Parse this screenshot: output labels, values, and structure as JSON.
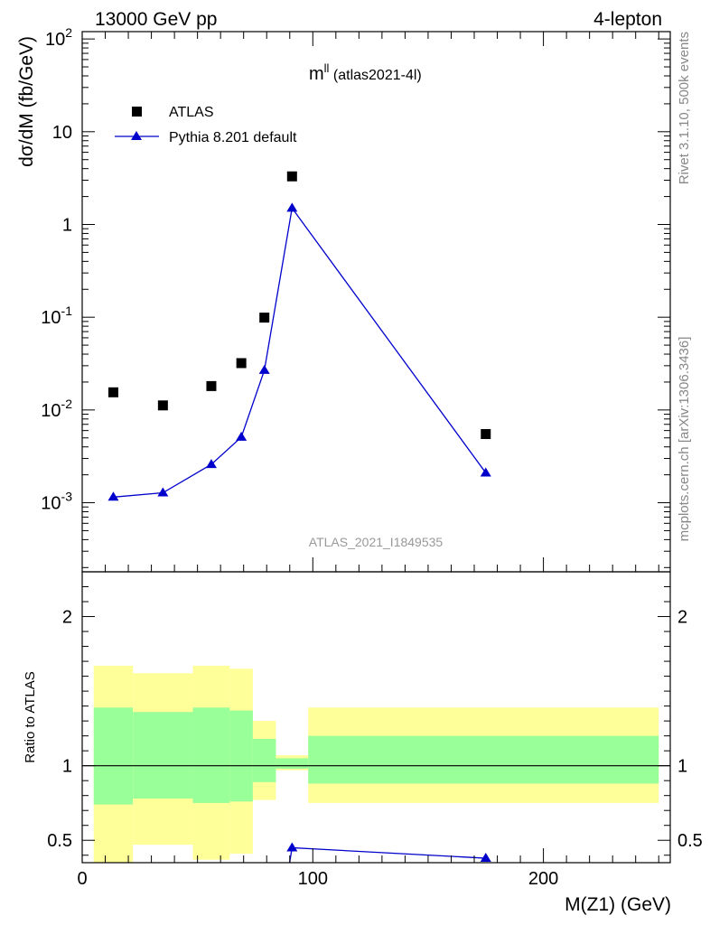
{
  "header": {
    "left": "13000 GeV pp",
    "right": "4-lepton"
  },
  "side_labels": {
    "rivet": "Rivet 3.1.10,  500k events",
    "mcplots": "mcplots.cern.ch [arXiv:1306.3436]"
  },
  "watermark": "ATLAS_2021_I1849535",
  "plot_title": {
    "main": "m",
    "sup": "ll",
    "sub": " (atlas2021-4l)"
  },
  "colors": {
    "mc": "#0000cc",
    "data": "#000000",
    "band_outer": "#ffff99",
    "band_inner": "#99ff99"
  },
  "chart_data": [
    {
      "type": "scatter",
      "panel": "main",
      "ylabel": "dσ/dM (fb/GeV)",
      "yscale": "log",
      "xlim": [
        0,
        255
      ],
      "ylim": [
        0.00018,
        120
      ],
      "ytick_labels": [
        "10^-3",
        "10^-2",
        "10^-1",
        "1",
        "10",
        "10^2"
      ],
      "legend_position": "top-left",
      "series": [
        {
          "name": "ATLAS",
          "marker": "square",
          "x": [
            13.5,
            35,
            56,
            69,
            79,
            91,
            175
          ],
          "y": [
            0.0155,
            0.0112,
            0.0181,
            0.032,
            0.099,
            3.3,
            0.0055
          ]
        },
        {
          "name": "Pythia 8.201 default",
          "marker": "triangle",
          "line": true,
          "x": [
            13.5,
            35,
            56,
            69,
            79,
            91,
            175
          ],
          "y": [
            0.00115,
            0.00128,
            0.00259,
            0.0051,
            0.0268,
            1.5,
            0.0021
          ]
        }
      ]
    },
    {
      "type": "line",
      "panel": "ratio",
      "xlabel": "M(Z1) (GeV)",
      "ylabel": "Ratio to ATLAS",
      "xlim": [
        0,
        255
      ],
      "ylim": [
        0.35,
        2.3
      ],
      "xtick_labels": [
        "0",
        "100",
        "200"
      ],
      "ytick_labels": [
        "0.5",
        "1",
        "2"
      ],
      "bands": [
        {
          "x_low": 5,
          "x_high": 22,
          "outer_low": 0.1,
          "outer_high": 1.67,
          "inner_low": 0.74,
          "inner_high": 1.39
        },
        {
          "x_low": 22,
          "x_high": 48,
          "outer_low": 0.47,
          "outer_high": 1.62,
          "inner_low": 0.78,
          "inner_high": 1.36
        },
        {
          "x_low": 48,
          "x_high": 64,
          "outer_low": 0.37,
          "outer_high": 1.67,
          "inner_low": 0.75,
          "inner_high": 1.39
        },
        {
          "x_low": 64,
          "x_high": 74,
          "outer_low": 0.41,
          "outer_high": 1.65,
          "inner_low": 0.76,
          "inner_high": 1.37
        },
        {
          "x_low": 74,
          "x_high": 84,
          "outer_low": 0.77,
          "outer_high": 1.3,
          "inner_low": 0.89,
          "inner_high": 1.18
        },
        {
          "x_low": 84,
          "x_high": 98,
          "outer_low": 0.97,
          "outer_high": 1.07,
          "inner_low": 0.98,
          "inner_high": 1.05
        },
        {
          "x_low": 98,
          "x_high": 250,
          "outer_low": 0.75,
          "outer_high": 1.39,
          "inner_low": 0.88,
          "inner_high": 1.2
        }
      ],
      "reference_line": 1,
      "ratio_series": {
        "name": "Pythia 8.201 default",
        "x": [
          87,
          91,
          175
        ],
        "y": [
          0.07,
          0.45,
          0.38
        ]
      }
    }
  ]
}
